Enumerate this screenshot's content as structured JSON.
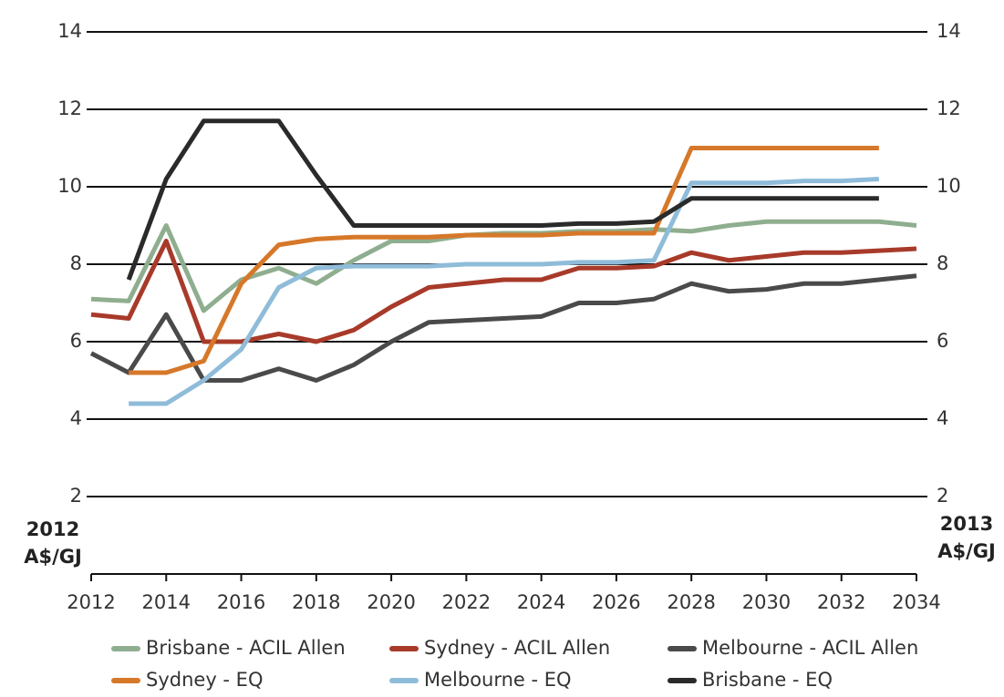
{
  "chart_data": {
    "type": "line",
    "y_label": [
      "2012",
      "A$/GJ"
    ],
    "y2_label": [
      "2013",
      "A$/GJ"
    ],
    "x": [
      2012,
      2013,
      2014,
      2015,
      2016,
      2017,
      2018,
      2019,
      2020,
      2021,
      2022,
      2023,
      2024,
      2025,
      2026,
      2027,
      2028,
      2029,
      2030,
      2031,
      2032,
      2033,
      2034
    ],
    "xlim": [
      2012,
      2034
    ],
    "xticks": [
      2012,
      2014,
      2016,
      2018,
      2020,
      2022,
      2024,
      2026,
      2028,
      2030,
      2032,
      2034
    ],
    "ylim": [
      0,
      14
    ],
    "yticks": [
      2,
      4,
      6,
      8,
      10,
      12,
      14
    ],
    "y2lim": [
      0,
      14
    ],
    "y2ticks": [
      2,
      4,
      6,
      8,
      10,
      12,
      14
    ],
    "grid": true,
    "legend": "bottom",
    "series": [
      {
        "name": "Brisbane - ACIL Allen",
        "color": "#8fae8f",
        "values": [
          7.1,
          7.05,
          9.0,
          6.8,
          7.6,
          7.9,
          7.5,
          8.1,
          8.6,
          8.6,
          8.75,
          8.8,
          8.8,
          8.85,
          8.85,
          8.9,
          8.85,
          9.0,
          9.1,
          9.1,
          9.1,
          9.1,
          9.0
        ]
      },
      {
        "name": "Sydney - ACIL Allen",
        "color": "#a83a2a",
        "values": [
          6.7,
          6.6,
          8.6,
          6.0,
          6.0,
          6.2,
          6.0,
          6.3,
          6.9,
          7.4,
          7.5,
          7.6,
          7.6,
          7.9,
          7.9,
          7.95,
          8.3,
          8.1,
          8.2,
          8.3,
          8.3,
          8.35,
          8.4
        ]
      },
      {
        "name": "Melbourne - ACIL Allen",
        "color": "#4a4a4a",
        "values": [
          5.7,
          5.2,
          6.7,
          5.0,
          5.0,
          5.3,
          5.0,
          5.4,
          6.0,
          6.5,
          6.55,
          6.6,
          6.65,
          7.0,
          7.0,
          7.1,
          7.5,
          7.3,
          7.35,
          7.5,
          7.5,
          7.6,
          7.7
        ]
      },
      {
        "name": "Sydney - EQ",
        "color": "#d6782a",
        "values": [
          null,
          5.2,
          5.2,
          5.5,
          7.5,
          8.5,
          8.65,
          8.7,
          8.7,
          8.7,
          8.75,
          8.75,
          8.75,
          8.8,
          8.8,
          8.8,
          11.0,
          11.0,
          11.0,
          11.0,
          11.0,
          11.0,
          null
        ]
      },
      {
        "name": "Melbourne - EQ",
        "color": "#8fbcd9",
        "values": [
          null,
          4.4,
          4.4,
          5.0,
          5.8,
          7.4,
          7.9,
          7.95,
          7.95,
          7.95,
          8.0,
          8.0,
          8.0,
          8.05,
          8.05,
          8.1,
          10.1,
          10.1,
          10.1,
          10.15,
          10.15,
          10.2,
          null
        ]
      },
      {
        "name": "Brisbane - EQ",
        "color": "#2a2a2a",
        "values": [
          null,
          7.6,
          10.2,
          11.7,
          11.7,
          11.7,
          10.3,
          9.0,
          9.0,
          9.0,
          9.0,
          9.0,
          9.0,
          9.05,
          9.05,
          9.1,
          9.7,
          9.7,
          9.7,
          9.7,
          9.7,
          9.7,
          null
        ]
      }
    ]
  }
}
